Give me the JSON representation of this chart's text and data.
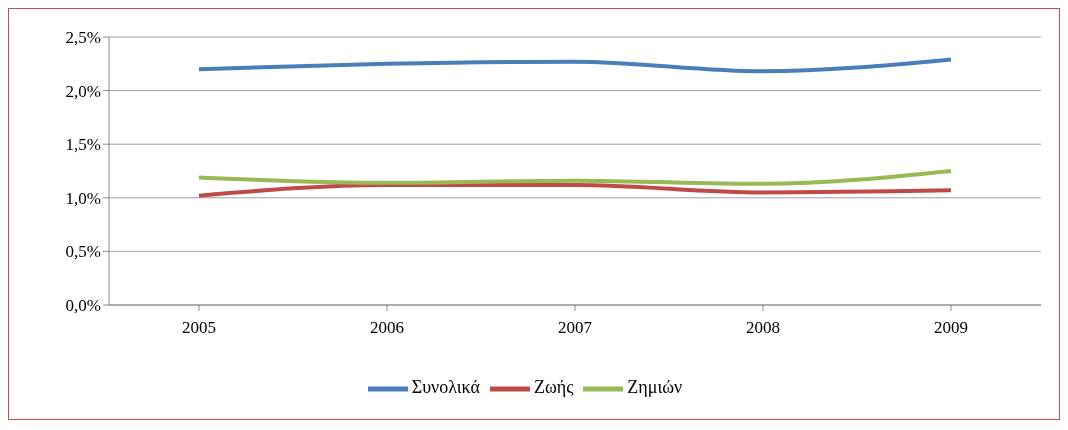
{
  "chart_data": {
    "type": "line",
    "categories": [
      "2005",
      "2006",
      "2007",
      "2008",
      "2009"
    ],
    "series": [
      {
        "name": "Συνολικά",
        "color": "#4a7ebb",
        "values": [
          2.2,
          2.25,
          2.27,
          2.18,
          2.29
        ]
      },
      {
        "name": "Ζωής",
        "color": "#be4b48",
        "values": [
          1.02,
          1.12,
          1.12,
          1.05,
          1.07
        ]
      },
      {
        "name": "Ζημιών",
        "color": "#98b954",
        "values": [
          1.19,
          1.14,
          1.16,
          1.13,
          1.25
        ]
      }
    ],
    "ylim": [
      0,
      2.5
    ],
    "yticks": [
      {
        "value": 0,
        "label": "0,0%"
      },
      {
        "value": 0.5,
        "label": "0,5%"
      },
      {
        "value": 1,
        "label": "1,0%"
      },
      {
        "value": 1.5,
        "label": "1,5%"
      },
      {
        "value": 2,
        "label": "2,0%"
      },
      {
        "value": 2.5,
        "label": "2,5%"
      }
    ],
    "grid": "y",
    "legend": "bottom",
    "marker": "none",
    "line_style": "solid"
  }
}
